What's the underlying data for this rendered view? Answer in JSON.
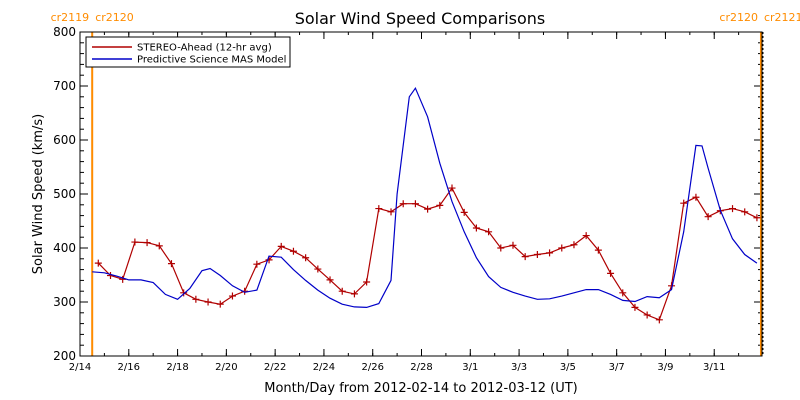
{
  "chart_data": {
    "type": "line",
    "title": "Solar Wind Speed Comparisons",
    "xlabel": "Month/Day from 2012-02-14 to 2012-03-12 (UT)",
    "ylabel": "Solar Wind Speed (km/s)",
    "ylim": [
      200,
      800
    ],
    "xlim": [
      "2012-02-14",
      "2012-03-12T23:00"
    ],
    "y_ticks": [
      200,
      300,
      400,
      500,
      600,
      700,
      800
    ],
    "x_ticks": [
      {
        "date": "2012-02-14",
        "label": "2/14"
      },
      {
        "date": "2012-02-16",
        "label": "2/16"
      },
      {
        "date": "2012-02-18",
        "label": "2/18"
      },
      {
        "date": "2012-02-20",
        "label": "2/20"
      },
      {
        "date": "2012-02-22",
        "label": "2/22"
      },
      {
        "date": "2012-02-24",
        "label": "2/24"
      },
      {
        "date": "2012-02-26",
        "label": "2/26"
      },
      {
        "date": "2012-02-28",
        "label": "2/28"
      },
      {
        "date": "2012-03-01",
        "label": "3/1"
      },
      {
        "date": "2012-03-03",
        "label": "3/3"
      },
      {
        "date": "2012-03-05",
        "label": "3/5"
      },
      {
        "date": "2012-03-07",
        "label": "3/7"
      },
      {
        "date": "2012-03-09",
        "label": "3/9"
      },
      {
        "date": "2012-03-11",
        "label": "3/11"
      }
    ],
    "grid": false,
    "legend_position": "top-left",
    "carrington_markers": [
      {
        "date": "2012-02-14T12:00",
        "label_left": "cr2119",
        "label_right": "cr2120",
        "side": "left"
      },
      {
        "date": "2012-03-12T22:00",
        "label_left": "cr2120",
        "label_right": "cr2121",
        "side": "right"
      }
    ],
    "marker_color": "#ff8c00",
    "series": [
      {
        "name": "STEREO-Ahead (12-hr avg)",
        "color": "#b00000",
        "marker": "plus",
        "points": [
          [
            "2012-02-14T18:00",
            372
          ],
          [
            "2012-02-15T06:00",
            349
          ],
          [
            "2012-02-15T18:00",
            342
          ],
          [
            "2012-02-16T06:00",
            411
          ],
          [
            "2012-02-16T18:00",
            410
          ],
          [
            "2012-02-17T06:00",
            404
          ],
          [
            "2012-02-17T18:00",
            371
          ],
          [
            "2012-02-18T06:00",
            317
          ],
          [
            "2012-02-18T18:00",
            305
          ],
          [
            "2012-02-19T06:00",
            300
          ],
          [
            "2012-02-19T18:00",
            296
          ],
          [
            "2012-02-20T06:00",
            311
          ],
          [
            "2012-02-20T18:00",
            320
          ],
          [
            "2012-02-21T06:00",
            370
          ],
          [
            "2012-02-21T18:00",
            378
          ],
          [
            "2012-02-22T06:00",
            403
          ],
          [
            "2012-02-22T18:00",
            394
          ],
          [
            "2012-02-23T06:00",
            382
          ],
          [
            "2012-02-23T18:00",
            361
          ],
          [
            "2012-02-24T06:00",
            341
          ],
          [
            "2012-02-24T18:00",
            320
          ],
          [
            "2012-02-25T06:00",
            315
          ],
          [
            "2012-02-25T18:00",
            337
          ],
          [
            "2012-02-26T06:00",
            473
          ],
          [
            "2012-02-26T18:00",
            467
          ],
          [
            "2012-02-27T06:00",
            482
          ],
          [
            "2012-02-27T18:00",
            482
          ],
          [
            "2012-02-28T06:00",
            472
          ],
          [
            "2012-02-28T18:00",
            479
          ],
          [
            "2012-02-29T06:00",
            511
          ],
          [
            "2012-02-29T18:00",
            466
          ],
          [
            "2012-03-01T06:00",
            437
          ],
          [
            "2012-03-01T18:00",
            430
          ],
          [
            "2012-03-02T06:00",
            400
          ],
          [
            "2012-03-02T18:00",
            405
          ],
          [
            "2012-03-03T06:00",
            384
          ],
          [
            "2012-03-03T18:00",
            388
          ],
          [
            "2012-03-04T06:00",
            391
          ],
          [
            "2012-03-04T18:00",
            400
          ],
          [
            "2012-03-05T06:00",
            406
          ],
          [
            "2012-03-05T18:00",
            423
          ],
          [
            "2012-03-06T06:00",
            396
          ],
          [
            "2012-03-06T18:00",
            353
          ],
          [
            "2012-03-07T06:00",
            317
          ],
          [
            "2012-03-07T18:00",
            290
          ],
          [
            "2012-03-08T06:00",
            276
          ],
          [
            "2012-03-08T18:00",
            267
          ],
          [
            "2012-03-09T06:00",
            330
          ],
          [
            "2012-03-09T18:00",
            483
          ],
          [
            "2012-03-10T06:00",
            494
          ],
          [
            "2012-03-10T18:00",
            458
          ],
          [
            "2012-03-11T06:00",
            469
          ],
          [
            "2012-03-11T18:00",
            473
          ],
          [
            "2012-03-12T06:00",
            467
          ],
          [
            "2012-03-12T18:00",
            456
          ]
        ]
      },
      {
        "name": "Predictive Science MAS Model",
        "color": "#0000c8",
        "marker": "none",
        "points": [
          [
            "2012-02-14T12:00",
            356
          ],
          [
            "2012-02-15T00:00",
            354
          ],
          [
            "2012-02-15T12:00",
            348
          ],
          [
            "2012-02-16T00:00",
            341
          ],
          [
            "2012-02-16T12:00",
            341
          ],
          [
            "2012-02-17T00:00",
            336
          ],
          [
            "2012-02-17T12:00",
            314
          ],
          [
            "2012-02-18T00:00",
            305
          ],
          [
            "2012-02-18T12:00",
            325
          ],
          [
            "2012-02-19T00:00",
            358
          ],
          [
            "2012-02-19T08:00",
            362
          ],
          [
            "2012-02-19T18:00",
            349
          ],
          [
            "2012-02-20T06:00",
            330
          ],
          [
            "2012-02-20T18:00",
            318
          ],
          [
            "2012-02-21T06:00",
            322
          ],
          [
            "2012-02-21T18:00",
            385
          ],
          [
            "2012-02-22T06:00",
            383
          ],
          [
            "2012-02-22T18:00",
            360
          ],
          [
            "2012-02-23T06:00",
            340
          ],
          [
            "2012-02-23T18:00",
            322
          ],
          [
            "2012-02-24T06:00",
            307
          ],
          [
            "2012-02-24T18:00",
            296
          ],
          [
            "2012-02-25T06:00",
            291
          ],
          [
            "2012-02-25T18:00",
            290
          ],
          [
            "2012-02-26T06:00",
            297
          ],
          [
            "2012-02-26T18:00",
            340
          ],
          [
            "2012-02-27T00:00",
            500
          ],
          [
            "2012-02-27T12:00",
            680
          ],
          [
            "2012-02-27T18:00",
            696
          ],
          [
            "2012-02-28T06:00",
            643
          ],
          [
            "2012-02-28T18:00",
            557
          ],
          [
            "2012-02-29T06:00",
            486
          ],
          [
            "2012-02-29T18:00",
            430
          ],
          [
            "2012-03-01T06:00",
            382
          ],
          [
            "2012-03-01T18:00",
            347
          ],
          [
            "2012-03-02T06:00",
            327
          ],
          [
            "2012-03-02T18:00",
            318
          ],
          [
            "2012-03-03T06:00",
            311
          ],
          [
            "2012-03-03T18:00",
            305
          ],
          [
            "2012-03-04T06:00",
            306
          ],
          [
            "2012-03-04T18:00",
            311
          ],
          [
            "2012-03-05T06:00",
            317
          ],
          [
            "2012-03-05T18:00",
            323
          ],
          [
            "2012-03-06T06:00",
            323
          ],
          [
            "2012-03-06T18:00",
            314
          ],
          [
            "2012-03-07T06:00",
            303
          ],
          [
            "2012-03-07T18:00",
            301
          ],
          [
            "2012-03-08T06:00",
            310
          ],
          [
            "2012-03-08T18:00",
            308
          ],
          [
            "2012-03-09T06:00",
            323
          ],
          [
            "2012-03-09T18:00",
            430
          ],
          [
            "2012-03-10T06:00",
            590
          ],
          [
            "2012-03-10T12:00",
            589
          ],
          [
            "2012-03-10T18:00",
            548
          ],
          [
            "2012-03-11T06:00",
            470
          ],
          [
            "2012-03-11T18:00",
            417
          ],
          [
            "2012-03-12T06:00",
            388
          ],
          [
            "2012-03-12T18:00",
            372
          ]
        ]
      }
    ]
  }
}
